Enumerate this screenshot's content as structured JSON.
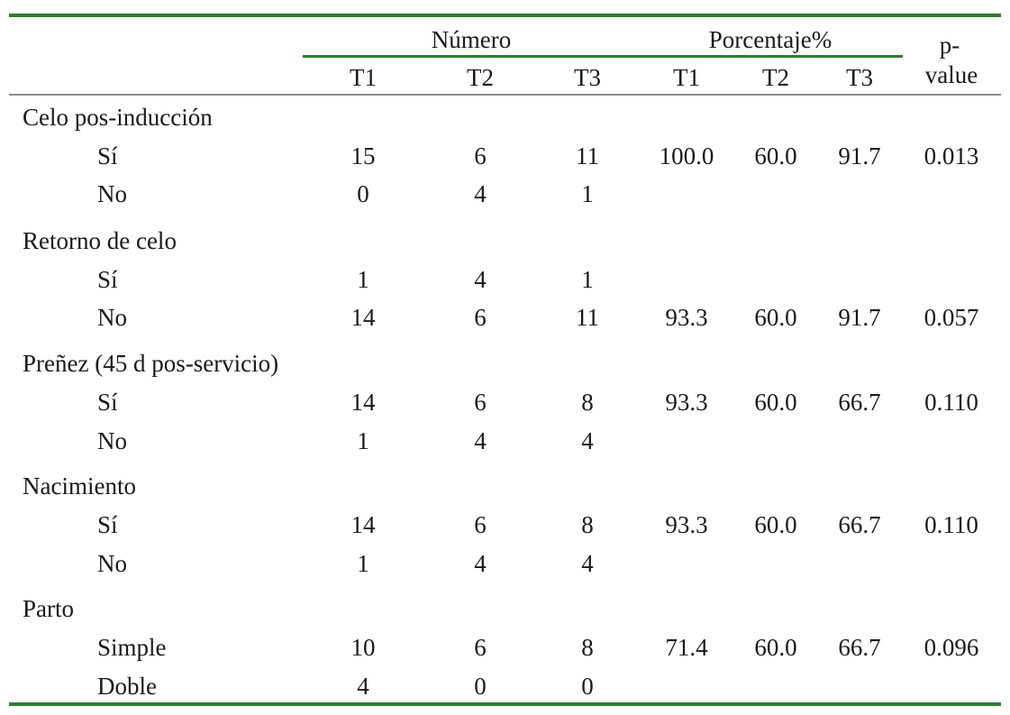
{
  "table": {
    "header": {
      "numero_label": "Número",
      "porcentaje_label": "Porcentaje%",
      "pvalue_label_line1": "p-",
      "pvalue_label_line2": "value",
      "numero_cols": [
        "T1",
        "T2",
        "T3"
      ],
      "porcentaje_cols": [
        "T1",
        "T2",
        "T3"
      ]
    },
    "colors": {
      "rule_green": "#2e7d32",
      "rule_grey": "#8a8a8a"
    },
    "groups": [
      {
        "label": "Celo pos-inducción",
        "rows": [
          {
            "label": "Sí",
            "n": [
              "15",
              "6",
              "11"
            ],
            "pct": [
              "100.0",
              "60.0",
              "91.7"
            ],
            "p": "0.013"
          },
          {
            "label": "No",
            "n": [
              "0",
              "4",
              "1"
            ],
            "pct": [
              "",
              "",
              ""
            ],
            "p": ""
          }
        ]
      },
      {
        "label": "Retorno de celo",
        "rows": [
          {
            "label": "Sí",
            "n": [
              "1",
              "4",
              "1"
            ],
            "pct": [
              "",
              "",
              ""
            ],
            "p": ""
          },
          {
            "label": "No",
            "n": [
              "14",
              "6",
              "11"
            ],
            "pct": [
              "93.3",
              "60.0",
              "91.7"
            ],
            "p": "0.057"
          }
        ]
      },
      {
        "label": "Preñez (45 d pos-servicio)",
        "rows": [
          {
            "label": "Sí",
            "n": [
              "14",
              "6",
              "8"
            ],
            "pct": [
              "93.3",
              "60.0",
              "66.7"
            ],
            "p": "0.110"
          },
          {
            "label": "No",
            "n": [
              "1",
              "4",
              "4"
            ],
            "pct": [
              "",
              "",
              ""
            ],
            "p": ""
          }
        ]
      },
      {
        "label": "Nacimiento",
        "rows": [
          {
            "label": "Sí",
            "n": [
              "14",
              "6",
              "8"
            ],
            "pct": [
              "93.3",
              "60.0",
              "66.7"
            ],
            "p": "0.110"
          },
          {
            "label": "No",
            "n": [
              "1",
              "4",
              "4"
            ],
            "pct": [
              "",
              "",
              ""
            ],
            "p": ""
          }
        ]
      },
      {
        "label": "Parto",
        "rows": [
          {
            "label": "Simple",
            "n": [
              "10",
              "6",
              "8"
            ],
            "pct": [
              "71.4",
              "60.0",
              "66.7"
            ],
            "p": "0.096"
          },
          {
            "label": "Doble",
            "n": [
              "4",
              "0",
              "0"
            ],
            "pct": [
              "",
              "",
              ""
            ],
            "p": ""
          }
        ]
      }
    ]
  }
}
